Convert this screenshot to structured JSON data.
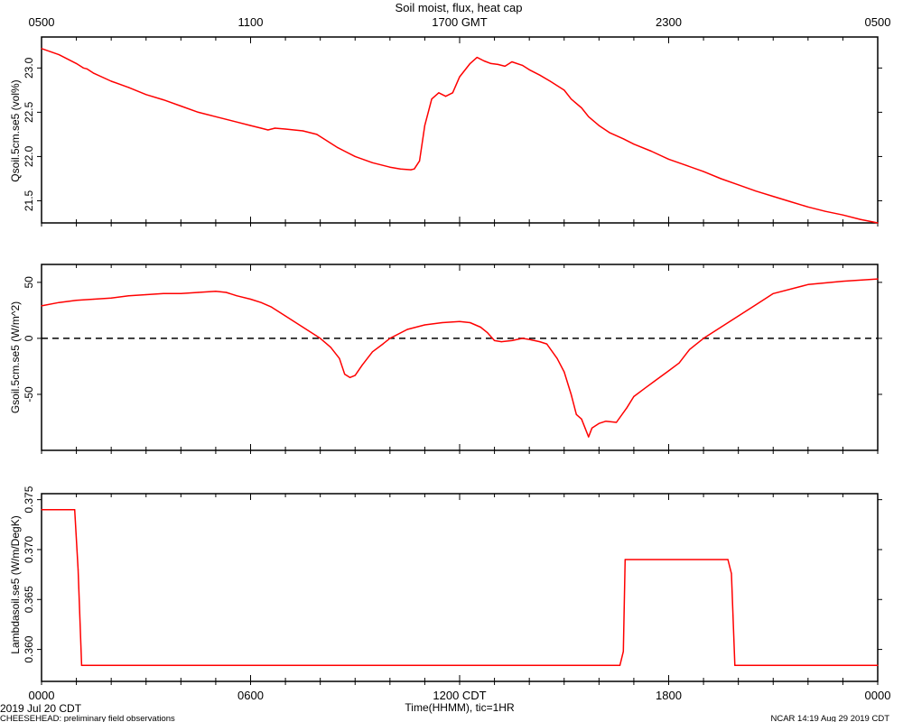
{
  "header": {
    "title": "Soil moist, flux, heat cap",
    "gmt_ticks": [
      "0500",
      "1100",
      "1700 GMT",
      "2300",
      "0500"
    ]
  },
  "footer": {
    "date_label": "2019 Jul 20 CDT",
    "project_label": "CHEESEHEAD: preliminary field observations",
    "credit_label": "NCAR 14:19 Aug 29 2019 CDT",
    "xlabel": "Time(HHMM), tic=1HR",
    "cdt_ticks": [
      "0000",
      "0600",
      "1200 CDT",
      "1800",
      "0000"
    ]
  },
  "colors": {
    "series": "#ff0000",
    "zero_line": "#000000"
  },
  "chart_data": [
    {
      "type": "line",
      "ylabel": "Qsoil.5cm.se5 (vol%)",
      "xlim": [
        0,
        24
      ],
      "ylim": [
        21.25,
        23.35
      ],
      "yticks": [
        21.5,
        22.0,
        22.5,
        23.0
      ],
      "ytick_labels": [
        "21.5",
        "22.0",
        "22.5",
        "23.0"
      ],
      "series": [
        {
          "x": [
            0,
            0.5,
            1.0,
            1.2,
            1.3,
            1.5,
            2.0,
            2.5,
            3.0,
            3.5,
            4.0,
            4.5,
            5.0,
            5.5,
            6.0,
            6.3,
            6.5,
            6.7,
            7.0,
            7.5,
            7.9,
            8.1,
            8.5,
            9.0,
            9.5,
            10.0,
            10.3,
            10.6,
            10.7,
            10.85,
            11.0,
            11.2,
            11.4,
            11.6,
            11.8,
            12.0,
            12.3,
            12.5,
            12.7,
            12.9,
            13.1,
            13.3,
            13.5,
            13.8,
            14.0,
            14.3,
            14.6,
            15.0,
            15.2,
            15.5,
            15.7,
            16.0,
            16.3,
            16.7,
            17.0,
            17.5,
            18.0,
            18.5,
            19.0,
            19.5,
            20.0,
            20.5,
            21.0,
            21.5,
            22.0,
            22.5,
            23.0,
            23.5,
            24.0
          ],
          "y": [
            23.22,
            23.15,
            23.05,
            23.0,
            22.99,
            22.94,
            22.85,
            22.78,
            22.7,
            22.64,
            22.57,
            22.5,
            22.45,
            22.4,
            22.35,
            22.32,
            22.3,
            22.32,
            22.31,
            22.29,
            22.25,
            22.2,
            22.1,
            22.0,
            21.93,
            21.88,
            21.86,
            21.85,
            21.86,
            21.95,
            22.35,
            22.65,
            22.72,
            22.68,
            22.72,
            22.9,
            23.05,
            23.12,
            23.08,
            23.05,
            23.04,
            23.02,
            23.07,
            23.03,
            22.98,
            22.92,
            22.85,
            22.75,
            22.65,
            22.55,
            22.45,
            22.35,
            22.27,
            22.2,
            22.14,
            22.06,
            21.97,
            21.9,
            21.83,
            21.75,
            21.68,
            21.61,
            21.55,
            21.49,
            21.43,
            21.38,
            21.34,
            21.29,
            21.25
          ]
        }
      ]
    },
    {
      "type": "line",
      "ylabel": "Gsoil.5cm.se5 (W/m^2)",
      "xlim": [
        0,
        24
      ],
      "ylim": [
        -100,
        66
      ],
      "yticks": [
        -50,
        0,
        50
      ],
      "ytick_labels": [
        "-50",
        "0",
        "50"
      ],
      "reference_line": 0,
      "series": [
        {
          "x": [
            0,
            0.5,
            1.0,
            1.5,
            2.0,
            2.5,
            3.0,
            3.5,
            4.0,
            4.5,
            5.0,
            5.3,
            5.6,
            6.0,
            6.3,
            6.6,
            7.0,
            7.5,
            8.0,
            8.3,
            8.55,
            8.7,
            8.85,
            9.0,
            9.2,
            9.5,
            9.8,
            10.0,
            10.5,
            11.0,
            11.5,
            12.0,
            12.3,
            12.6,
            12.8,
            13.0,
            13.2,
            13.5,
            13.8,
            14.0,
            14.3,
            14.5,
            14.8,
            15.0,
            15.2,
            15.35,
            15.5,
            15.6,
            15.7,
            15.8,
            16.0,
            16.2,
            16.5,
            16.8,
            17.0,
            17.3,
            17.6,
            18.0,
            18.3,
            18.6,
            19.0,
            19.5,
            20.0,
            20.5,
            21.0,
            22.0,
            23.0,
            24.0
          ],
          "y": [
            29,
            32,
            34,
            35,
            36,
            38,
            39,
            40,
            40,
            41,
            42,
            41,
            38,
            35,
            32,
            28,
            20,
            10,
            0,
            -8,
            -18,
            -32,
            -35,
            -33,
            -24,
            -12,
            -5,
            0,
            8,
            12,
            14,
            15,
            14,
            10,
            5,
            -2,
            -3,
            -2,
            0,
            -1,
            -3,
            -5,
            -18,
            -30,
            -50,
            -68,
            -72,
            -80,
            -88,
            -80,
            -76,
            -74,
            -75,
            -62,
            -52,
            -45,
            -38,
            -29,
            -22,
            -10,
            0,
            10,
            20,
            30,
            40,
            48,
            51,
            53
          ]
        }
      ]
    },
    {
      "type": "line",
      "ylabel": "Lambdasoil.se5 (W/m/DegK)",
      "xlim": [
        0,
        24
      ],
      "ylim": [
        0.3568,
        0.3756
      ],
      "yticks": [
        0.36,
        0.365,
        0.37,
        0.375
      ],
      "ytick_labels": [
        "0.360",
        "0.365",
        "0.370",
        "0.375"
      ],
      "series": [
        {
          "x": [
            0,
            0.95,
            1.05,
            1.15,
            16.6,
            16.7,
            16.75,
            19.7,
            19.8,
            19.9,
            24.0
          ],
          "y": [
            0.374,
            0.374,
            0.368,
            0.3584,
            0.3584,
            0.3598,
            0.369,
            0.369,
            0.3676,
            0.3584,
            0.3584
          ]
        }
      ]
    }
  ]
}
